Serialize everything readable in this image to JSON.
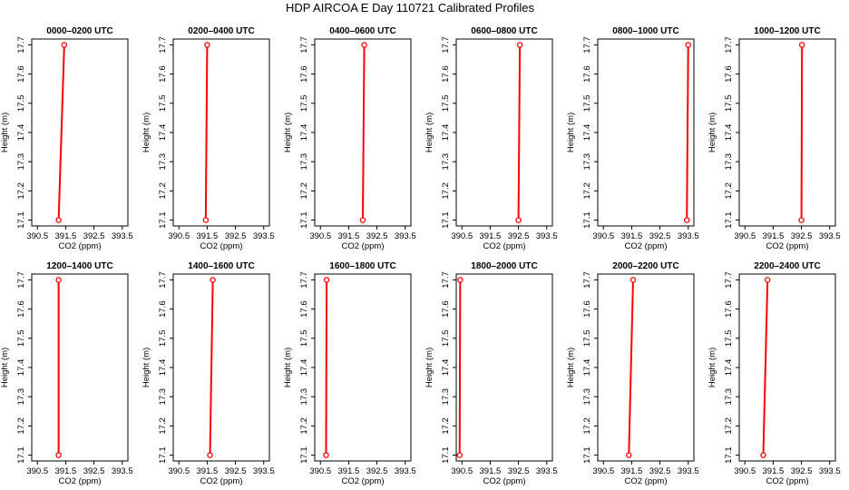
{
  "title": "HDP AIRCOA E  Day 110721  Calibrated Profiles",
  "chart_data": [
    {
      "type": "line",
      "title": "0000–0200 UTC",
      "xlabel": "CO2 (ppm)",
      "ylabel": "Height (m)",
      "xlim": [
        390.3,
        393.7
      ],
      "ylim": [
        17.08,
        17.72
      ],
      "xticks": [
        390.5,
        391.5,
        392.5,
        393.5
      ],
      "yticks": [
        17.1,
        17.2,
        17.3,
        17.4,
        17.5,
        17.6,
        17.7
      ],
      "series": [
        {
          "values": [
            [
              391.25,
              17.1
            ],
            [
              391.45,
              17.7
            ]
          ]
        }
      ]
    },
    {
      "type": "line",
      "title": "0200–0400 UTC",
      "xlabel": "CO2 (ppm)",
      "ylabel": "Height (m)",
      "xlim": [
        390.3,
        393.7
      ],
      "ylim": [
        17.08,
        17.72
      ],
      "xticks": [
        390.5,
        391.5,
        392.5,
        393.5
      ],
      "yticks": [
        17.1,
        17.2,
        17.3,
        17.4,
        17.5,
        17.6,
        17.7
      ],
      "series": [
        {
          "values": [
            [
              391.45,
              17.1
            ],
            [
              391.5,
              17.7
            ]
          ]
        }
      ]
    },
    {
      "type": "line",
      "title": "0400–0600 UTC",
      "xlabel": "CO2 (ppm)",
      "ylabel": "Height (m)",
      "xlim": [
        390.3,
        393.7
      ],
      "ylim": [
        17.08,
        17.72
      ],
      "xticks": [
        390.5,
        391.5,
        392.5,
        393.5
      ],
      "yticks": [
        17.1,
        17.2,
        17.3,
        17.4,
        17.5,
        17.6,
        17.7
      ],
      "series": [
        {
          "values": [
            [
              392.0,
              17.1
            ],
            [
              392.05,
              17.7
            ]
          ]
        }
      ]
    },
    {
      "type": "line",
      "title": "0600–0800 UTC",
      "xlabel": "CO2 (ppm)",
      "ylabel": "Height (m)",
      "xlim": [
        390.3,
        393.7
      ],
      "ylim": [
        17.08,
        17.72
      ],
      "xticks": [
        390.5,
        391.5,
        392.5,
        393.5
      ],
      "yticks": [
        17.1,
        17.2,
        17.3,
        17.4,
        17.5,
        17.6,
        17.7
      ],
      "series": [
        {
          "values": [
            [
              392.5,
              17.1
            ],
            [
              392.55,
              17.7
            ]
          ]
        }
      ]
    },
    {
      "type": "line",
      "title": "0800–1000 UTC",
      "xlabel": "CO2 (ppm)",
      "ylabel": "Height (m)",
      "xlim": [
        390.3,
        393.7
      ],
      "ylim": [
        17.08,
        17.72
      ],
      "xticks": [
        390.5,
        391.5,
        392.5,
        393.5
      ],
      "yticks": [
        17.1,
        17.2,
        17.3,
        17.4,
        17.5,
        17.6,
        17.7
      ],
      "series": [
        {
          "values": [
            [
              393.45,
              17.1
            ],
            [
              393.5,
              17.7
            ]
          ]
        }
      ]
    },
    {
      "type": "line",
      "title": "1000–1200 UTC",
      "xlabel": "CO2 (ppm)",
      "ylabel": "Height (m)",
      "xlim": [
        390.3,
        393.7
      ],
      "ylim": [
        17.08,
        17.72
      ],
      "xticks": [
        390.5,
        391.5,
        392.5,
        393.5
      ],
      "yticks": [
        17.1,
        17.2,
        17.3,
        17.4,
        17.5,
        17.6,
        17.7
      ],
      "series": [
        {
          "values": [
            [
              392.5,
              17.1
            ],
            [
              392.52,
              17.7
            ]
          ]
        }
      ]
    },
    {
      "type": "line",
      "title": "1200–1400 UTC",
      "xlabel": "CO2 (ppm)",
      "ylabel": "Height (m)",
      "xlim": [
        390.3,
        393.7
      ],
      "ylim": [
        17.08,
        17.72
      ],
      "xticks": [
        390.5,
        391.5,
        392.5,
        393.5
      ],
      "yticks": [
        17.1,
        17.2,
        17.3,
        17.4,
        17.5,
        17.6,
        17.7
      ],
      "series": [
        {
          "values": [
            [
              391.25,
              17.1
            ],
            [
              391.25,
              17.7
            ]
          ]
        }
      ]
    },
    {
      "type": "line",
      "title": "1400–1600 UTC",
      "xlabel": "CO2 (ppm)",
      "ylabel": "Height (m)",
      "xlim": [
        390.3,
        393.7
      ],
      "ylim": [
        17.08,
        17.72
      ],
      "xticks": [
        390.5,
        391.5,
        392.5,
        393.5
      ],
      "yticks": [
        17.1,
        17.2,
        17.3,
        17.4,
        17.5,
        17.6,
        17.7
      ],
      "series": [
        {
          "values": [
            [
              391.6,
              17.1
            ],
            [
              391.7,
              17.7
            ]
          ]
        }
      ]
    },
    {
      "type": "line",
      "title": "1600–1800 UTC",
      "xlabel": "CO2 (ppm)",
      "ylabel": "Height (m)",
      "xlim": [
        390.3,
        393.7
      ],
      "ylim": [
        17.08,
        17.72
      ],
      "xticks": [
        390.5,
        391.5,
        392.5,
        393.5
      ],
      "yticks": [
        17.1,
        17.2,
        17.3,
        17.4,
        17.5,
        17.6,
        17.7
      ],
      "series": [
        {
          "values": [
            [
              390.7,
              17.1
            ],
            [
              390.72,
              17.7
            ]
          ]
        }
      ]
    },
    {
      "type": "line",
      "title": "1800–2000 UTC",
      "xlabel": "CO2 (ppm)",
      "ylabel": "Height (m)",
      "xlim": [
        390.3,
        393.7
      ],
      "ylim": [
        17.08,
        17.72
      ],
      "xticks": [
        390.5,
        391.5,
        392.5,
        393.5
      ],
      "yticks": [
        17.1,
        17.2,
        17.3,
        17.4,
        17.5,
        17.6,
        17.7
      ],
      "series": [
        {
          "values": [
            [
              390.42,
              17.1
            ],
            [
              390.44,
              17.7
            ]
          ]
        }
      ]
    },
    {
      "type": "line",
      "title": "2000–2200 UTC",
      "xlabel": "CO2 (ppm)",
      "ylabel": "Height (m)",
      "xlim": [
        390.3,
        393.7
      ],
      "ylim": [
        17.08,
        17.72
      ],
      "xticks": [
        390.5,
        391.5,
        392.5,
        393.5
      ],
      "yticks": [
        17.1,
        17.2,
        17.3,
        17.4,
        17.5,
        17.6,
        17.7
      ],
      "series": [
        {
          "values": [
            [
              391.4,
              17.1
            ],
            [
              391.55,
              17.7
            ]
          ]
        }
      ]
    },
    {
      "type": "line",
      "title": "2200–2400 UTC",
      "xlabel": "CO2 (ppm)",
      "ylabel": "Height (m)",
      "xlim": [
        390.3,
        393.7
      ],
      "ylim": [
        17.08,
        17.72
      ],
      "xticks": [
        390.5,
        391.5,
        392.5,
        393.5
      ],
      "yticks": [
        17.1,
        17.2,
        17.3,
        17.4,
        17.5,
        17.6,
        17.7
      ],
      "series": [
        {
          "values": [
            [
              391.15,
              17.1
            ],
            [
              391.3,
              17.7
            ]
          ]
        }
      ]
    }
  ],
  "colors": {
    "line": "#ff0000",
    "marker": "#ff0000",
    "axes": "#000000",
    "background": "#ffffff"
  }
}
